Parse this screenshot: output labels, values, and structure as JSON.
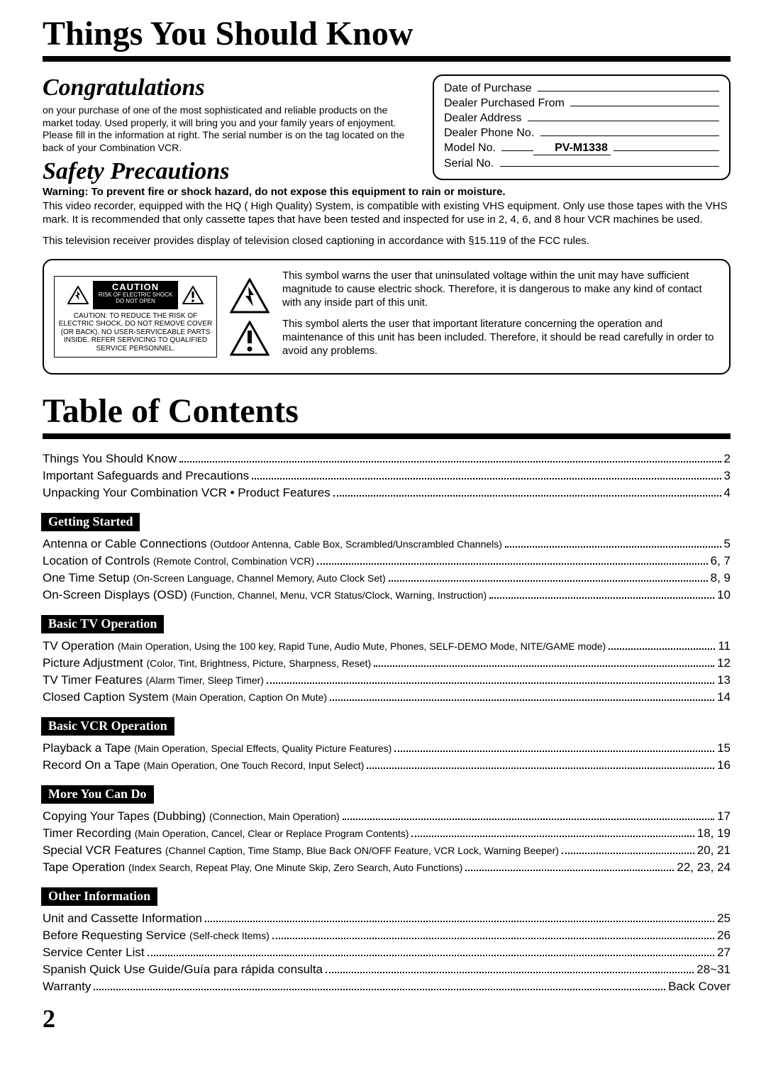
{
  "title1": "Things You Should Know",
  "congrats": {
    "heading": "Congratulations",
    "body": "on your purchase of one of the most sophisticated and reliable products on the market today. Used properly, it will bring you and your family years of enjoyment. Please fill in the information at right. The serial number is on the tag located on the back of your Combination VCR."
  },
  "purchase_box": {
    "rows": [
      {
        "label": "Date of Purchase",
        "value": ""
      },
      {
        "label": "Dealer Purchased From",
        "value": ""
      },
      {
        "label": "Dealer Address",
        "value": ""
      },
      {
        "label": "Dealer Phone No.",
        "value": ""
      },
      {
        "label": "Model No.",
        "value": "PV-M1338"
      },
      {
        "label": "Serial No.",
        "value": ""
      }
    ]
  },
  "safety": {
    "heading": "Safety Precautions",
    "warning_bold": "Warning: To prevent fire or shock hazard, do not expose this equipment to rain or moisture.",
    "line2": "This video recorder, equipped with the HQ ( High Quality) System, is compatible with existing VHS equipment. Only use those tapes with the VHS mark. It is recommended that only cassette tapes that have been tested and inspected for use in 2, 4, 6, and 8 hour VCR machines be used.",
    "line3": "This television receiver provides display of television closed captioning in accordance with §15.119 of the FCC rules."
  },
  "caution_card": {
    "top_label": "CAUTION",
    "top_sub1": "RISK OF ELECTRIC SHOCK",
    "top_sub2": "DO NOT OPEN",
    "body": "CAUTION: TO REDUCE THE RISK OF ELECTRIC SHOCK, DO NOT REMOVE COVER (OR BACK). NO USER-SERVICEABLE PARTS INSIDE. REFER SERVICING TO QUALIFIED SERVICE PERSONNEL."
  },
  "symbol_texts": {
    "p1": "This symbol warns the user that uninsulated voltage within the unit may have sufficient magnitude to cause electric shock. Therefore, it is dangerous to make any kind of contact with any inside part of this unit.",
    "p2": "This symbol alerts the user that important literature concerning the operation and maintenance of this unit has been included. Therefore, it should be read carefully in order to avoid any problems."
  },
  "toc_title": "Table of Contents",
  "toc_intro": [
    {
      "label": "Things You Should Know",
      "sub": "",
      "page": "2"
    },
    {
      "label": "Important Safeguards and Precautions",
      "sub": "",
      "page": "3"
    },
    {
      "label": "Unpacking Your Combination VCR • Product Features",
      "sub": "",
      "page": "4"
    }
  ],
  "sections": [
    {
      "heading": "Getting Started",
      "items": [
        {
          "label": "Antenna or Cable Connections ",
          "sub": "(Outdoor Antenna, Cable Box, Scrambled/Unscrambled Channels)",
          "page": "5"
        },
        {
          "label": "Location of Controls ",
          "sub": "(Remote Control, Combination VCR)",
          "page": "6, 7"
        },
        {
          "label": "One Time Setup ",
          "sub": "(On-Screen Language, Channel Memory, Auto Clock Set)",
          "page": "8, 9"
        },
        {
          "label": "On-Screen Displays (OSD) ",
          "sub": "(Function, Channel, Menu, VCR Status/Clock, Warning, Instruction)",
          "page": "10"
        }
      ]
    },
    {
      "heading": "Basic TV Operation",
      "items": [
        {
          "label": "TV Operation ",
          "sub": "(Main Operation, Using the 100 key, Rapid Tune, Audio Mute, Phones, SELF-DEMO Mode, NITE/GAME mode)",
          "page": "11"
        },
        {
          "label": "Picture Adjustment ",
          "sub": "(Color, Tint, Brightness, Picture, Sharpness, Reset)",
          "page": "12"
        },
        {
          "label": "TV Timer Features ",
          "sub": "(Alarm Timer, Sleep Timer)",
          "page": "13"
        },
        {
          "label": "Closed Caption System ",
          "sub": "(Main Operation, Caption On Mute)",
          "page": "14"
        }
      ]
    },
    {
      "heading": "Basic VCR Operation",
      "items": [
        {
          "label": "Playback a Tape ",
          "sub": "(Main Operation, Special Effects, Quality Picture Features)",
          "page": "15"
        },
        {
          "label": "Record On a Tape ",
          "sub": "(Main Operation, One Touch Record, Input Select)",
          "page": "16"
        }
      ]
    },
    {
      "heading": "More You Can Do",
      "items": [
        {
          "label": "Copying Your Tapes (Dubbing) ",
          "sub": "(Connection, Main Operation)",
          "page": "17"
        },
        {
          "label": "Timer Recording ",
          "sub": "(Main Operation, Cancel, Clear or Replace Program Contents)",
          "page": "18, 19"
        },
        {
          "label": "Special VCR Features ",
          "sub": "(Channel Caption, Time Stamp, Blue Back ON/OFF Feature, VCR Lock, Warning Beeper)",
          "page": "20, 21"
        },
        {
          "label": "Tape Operation ",
          "sub": "(Index Search, Repeat Play, One Minute Skip, Zero Search, Auto Functions)",
          "page": "22, 23, 24"
        }
      ]
    },
    {
      "heading": "Other Information",
      "items": [
        {
          "label": "Unit and Cassette Information",
          "sub": "",
          "page": "25"
        },
        {
          "label": "Before Requesting Service ",
          "sub": "(Self-check Items)",
          "page": "26"
        },
        {
          "label": "Service Center List",
          "sub": "",
          "page": "27"
        },
        {
          "label": "Spanish Quick Use Guide/Guía para rápida consulta",
          "sub": "",
          "page": "28~31"
        },
        {
          "label": "Warranty",
          "sub": "",
          "page": "Back Cover"
        }
      ]
    }
  ],
  "page_number": "2"
}
